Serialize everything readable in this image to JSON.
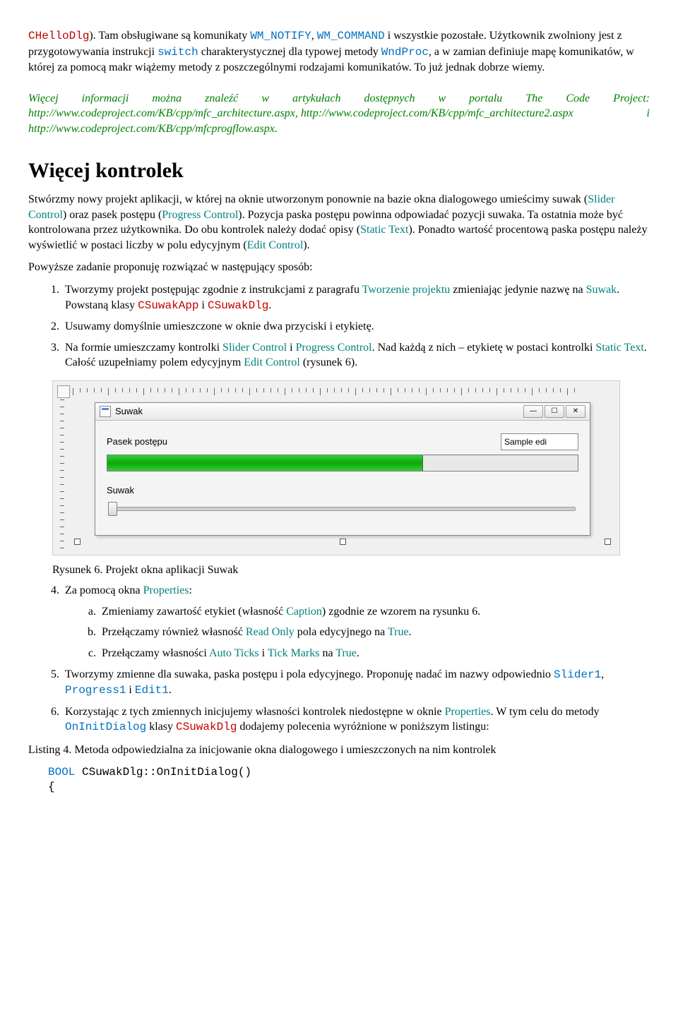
{
  "para1_a": "CHelloDlg",
  "para1_b": "). Tam obsługiwane są komunikaty ",
  "para1_c": "WM_NOTIFY",
  "para1_d": ", ",
  "para1_e": "WM_COMMAND",
  "para1_f": " i wszystkie pozostałe. Użytkownik zwolniony jest z przygotowywania instrukcji ",
  "para1_g": "switch",
  "para1_h": " charakterystycznej dla typowej metody ",
  "para1_i": "WndProc",
  "para1_j": ", a w zamian definiuje mapę komunikatów, w której za pomocą makr wiążemy metody z poszczególnymi rodzajami komunikatów. To już jednak dobrze wiemy.",
  "info1": "Więcej informacji można znaleźć w artykułach dostępnych w portalu The Code Project: ",
  "link1": "http://www.codeproject.com/KB/cpp/mfc_architecture.aspx",
  "info2": ", ",
  "link2": "http://www.codeproject.com/KB/cpp/mfc_architecture2.aspx",
  "info3": " i ",
  "link3": "http://www.codeproject.com/KB/cpp/mfcprogflow.aspx",
  "info4": ".",
  "h2": "Więcej kontrolek",
  "p2a": "Stwórzmy nowy projekt aplikacji, w której na oknie utworzonym ponownie na bazie okna dialogowego umieścimy suwak (",
  "p2b": "Slider Control",
  "p2c": ") oraz pasek postępu (",
  "p2d": "Progress Control",
  "p2e": "). Pozycja paska postępu powinna odpowiadać pozycji suwaka. Ta ostatnia może być kontrolowana przez użytkownika. Do obu kontrolek należy dodać opisy (",
  "p2f": "Static Text",
  "p2g": "). Ponadto wartość procentową paska postępu należy wyświetlić w postaci liczby w polu edycyjnym (",
  "p2h": "Edit Control",
  "p2i": ").",
  "p3": "Powyższe zadanie proponuję rozwiązać w następujący sposób:",
  "li1a": "Tworzymy projekt postępując zgodnie z instrukcjami z paragrafu ",
  "li1b": "Tworzenie projektu",
  "li1c": " zmieniając jedynie nazwę na ",
  "li1d": "Suwak",
  "li1e": ". Powstaną klasy ",
  "li1f": "CSuwakApp",
  "li1g": " i ",
  "li1h": "CSuwakDlg",
  "li1i": ".",
  "li2": "Usuwamy domyślnie umieszczone w oknie dwa przyciski i etykietę.",
  "li3a": "Na formie umieszczamy kontrolki ",
  "li3b": "Slider Control",
  "li3c": " i ",
  "li3d": "Progress Control",
  "li3e": ". Nad każdą z nich – etykietę w postaci kontrolki ",
  "li3f": "Static Text",
  "li3g": ". Całość uzupełniamy polem edycyjnym ",
  "li3h": "Edit Control",
  "li3i": " (rysunek 6).",
  "win_title": "Suwak",
  "lbl_progress": "Pasek postępu",
  "lbl_slider": "Suwak",
  "edit_sample": "Sample edi",
  "fig6": "Rysunek 6. Projekt okna aplikacji Suwak",
  "li4a": "Za pomocą okna ",
  "li4b": "Properties",
  "li4c": ":",
  "li4_a1": "Zmieniamy zawartość etykiet (własność ",
  "li4_a2": "Caption",
  "li4_a3": ") zgodnie ze wzorem na rysunku 6.",
  "li4_b1": "Przełączamy również własność ",
  "li4_b2": "Read Only",
  "li4_b3": " pola edycyjnego na ",
  "li4_b4": "True",
  "li4_b5": ".",
  "li4_c1": "Przełączamy własności ",
  "li4_c2": "Auto Ticks",
  "li4_c3": " i ",
  "li4_c4": "Tick Marks",
  "li4_c5": " na ",
  "li4_c6": "True",
  "li4_c7": ".",
  "li5a": "Tworzymy zmienne dla suwaka, paska postępu i pola edycyjnego. Proponuję nadać im nazwy odpowiednio ",
  "li5b": "Slider1",
  "li5c": ", ",
  "li5d": "Progress1",
  "li5e": " i ",
  "li5f": "Edit1",
  "li5g": ".",
  "li6a": "Korzystając z tych zmiennych inicjujemy własności kontrolek niedostępne w oknie ",
  "li6b": "Properties",
  "li6c": ". W tym celu do metody ",
  "li6d": "OnInitDialog",
  "li6e": " klasy ",
  "li6f": "CSuwakDlg",
  "li6g": " dodajemy polecenia wyróżnione w poniższym listingu:",
  "listing4": "Listing 4. Metoda odpowiedzialna za inicjowanie okna dialogowego i umieszczonych na nim kontrolek",
  "codeA": "BOOL",
  "codeB": " CSuwakDlg::OnInitDialog()",
  "codeC": "{"
}
